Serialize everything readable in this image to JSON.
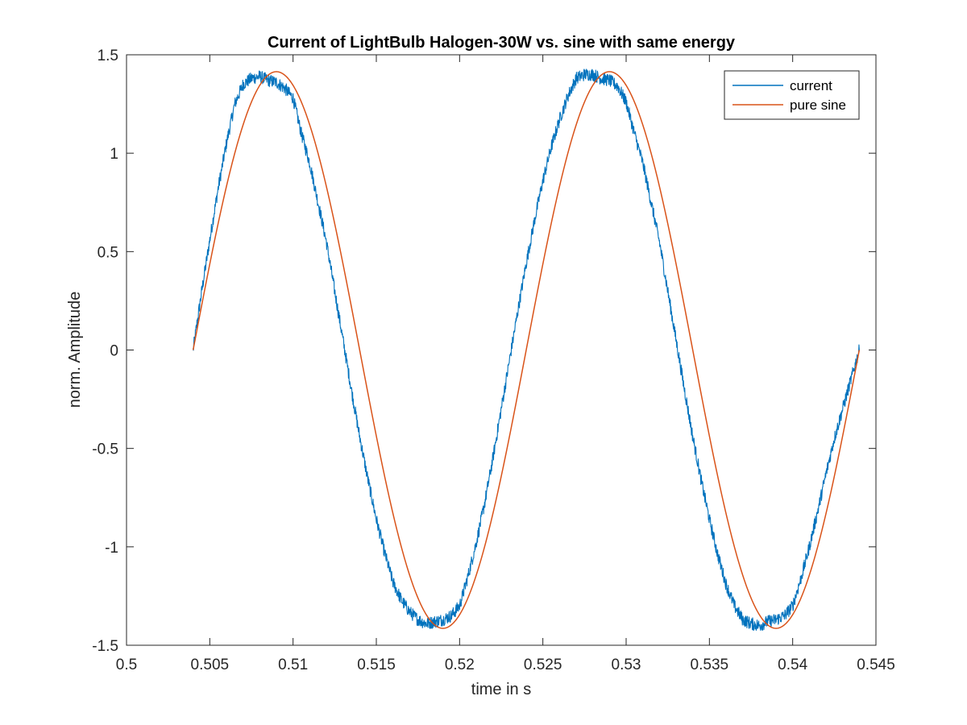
{
  "chart_data": {
    "type": "line",
    "title": "Current of LightBulb Halogen-30W vs. sine with same energy",
    "xlabel": "time in s",
    "ylabel": "norm. Amplitude",
    "xlim": [
      0.5,
      0.545
    ],
    "ylim": [
      -1.5,
      1.5
    ],
    "xticks": [
      0.5,
      0.505,
      0.51,
      0.515,
      0.52,
      0.525,
      0.53,
      0.535,
      0.54,
      0.545
    ],
    "xtick_labels": [
      "0.5",
      "0.505",
      "0.51",
      "0.515",
      "0.52",
      "0.525",
      "0.53",
      "0.535",
      "0.54",
      "0.545"
    ],
    "yticks": [
      -1.5,
      -1,
      -0.5,
      0,
      0.5,
      1,
      1.5
    ],
    "ytick_labels": [
      "-1.5",
      "-1",
      "-0.5",
      "0",
      "0.5",
      "1",
      "1.5"
    ],
    "grid": false,
    "legend_position": "top-right",
    "series": [
      {
        "name": "current",
        "color": "#0072BD",
        "style": "noisy",
        "x": [
          0.504,
          0.5045,
          0.505,
          0.5055,
          0.506,
          0.5065,
          0.507,
          0.5075,
          0.508,
          0.5085,
          0.509,
          0.5095,
          0.51,
          0.5105,
          0.511,
          0.5115,
          0.512,
          0.5125,
          0.513,
          0.5135,
          0.514,
          0.5145,
          0.515,
          0.5155,
          0.516,
          0.5165,
          0.517,
          0.5175,
          0.518,
          0.5185,
          0.519,
          0.5195,
          0.52,
          0.5205,
          0.521,
          0.5215,
          0.522,
          0.5225,
          0.523,
          0.5235,
          0.524,
          0.5245,
          0.525,
          0.5255,
          0.526,
          0.5265,
          0.527,
          0.5275,
          0.528,
          0.5285,
          0.529,
          0.5295,
          0.53,
          0.5305,
          0.531,
          0.5315,
          0.532,
          0.5325,
          0.533,
          0.5335,
          0.534,
          0.5345,
          0.535,
          0.5355,
          0.536,
          0.5365,
          0.537,
          0.5375,
          0.538,
          0.5385,
          0.539,
          0.5395,
          0.54,
          0.5405,
          0.541,
          0.5415,
          0.542,
          0.5425,
          0.543,
          0.5435,
          0.544
        ],
        "values": [
          0.0,
          0.29,
          0.56,
          0.82,
          1.05,
          1.25,
          1.35,
          1.38,
          1.39,
          1.37,
          1.36,
          1.33,
          1.28,
          1.1,
          0.95,
          0.75,
          0.55,
          0.3,
          0.05,
          -0.2,
          -0.44,
          -0.66,
          -0.86,
          -1.03,
          -1.18,
          -1.27,
          -1.33,
          -1.37,
          -1.39,
          -1.38,
          -1.37,
          -1.35,
          -1.3,
          -1.15,
          -0.98,
          -0.78,
          -0.55,
          -0.3,
          -0.05,
          0.2,
          0.44,
          0.66,
          0.86,
          1.03,
          1.17,
          1.29,
          1.38,
          1.4,
          1.4,
          1.38,
          1.37,
          1.34,
          1.26,
          1.1,
          0.95,
          0.75,
          0.55,
          0.3,
          0.05,
          -0.2,
          -0.44,
          -0.66,
          -0.86,
          -1.04,
          -1.19,
          -1.3,
          -1.37,
          -1.39,
          -1.4,
          -1.38,
          -1.37,
          -1.35,
          -1.3,
          -1.16,
          -1.0,
          -0.82,
          -0.63,
          -0.45,
          -0.3,
          -0.15,
          0.0
        ]
      },
      {
        "name": "pure sine",
        "color": "#D95319",
        "style": "smooth",
        "amplitude": 1.414,
        "frequency_hz": 50,
        "x_start": 0.504,
        "x_end": 0.544
      }
    ]
  }
}
